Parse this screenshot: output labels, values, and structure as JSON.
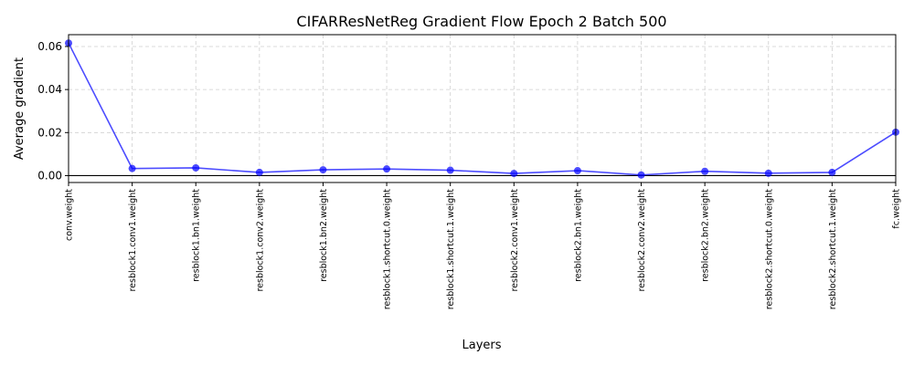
{
  "chart_data": {
    "type": "line",
    "title": "CIFARResNetReg Gradient Flow Epoch 2 Batch 500",
    "xlabel": "Layers",
    "ylabel": "Average gradient",
    "ylim": [
      -0.0032,
      0.0655
    ],
    "yticks": [
      0.0,
      0.02,
      0.04,
      0.06
    ],
    "ytick_labels": [
      "0.00",
      "0.02",
      "0.04",
      "0.06"
    ],
    "grid": true,
    "zero_line": true,
    "color": "#0000ff",
    "categories": [
      "conv.weight",
      "resblock1.conv1.weight",
      "resblock1.bn1.weight",
      "resblock1.conv2.weight",
      "resblock1.bn2.weight",
      "resblock1.shortcut.0.weight",
      "resblock1.shortcut.1.weight",
      "resblock2.conv1.weight",
      "resblock2.bn1.weight",
      "resblock2.conv2.weight",
      "resblock2.bn2.weight",
      "resblock2.shortcut.0.weight",
      "resblock2.shortcut.1.weight",
      "fc.weight"
    ],
    "values": [
      0.0616,
      0.0033,
      0.0036,
      0.0015,
      0.0027,
      0.0031,
      0.0025,
      0.001,
      0.0023,
      0.0003,
      0.002,
      0.0011,
      0.0015,
      0.0202
    ]
  }
}
